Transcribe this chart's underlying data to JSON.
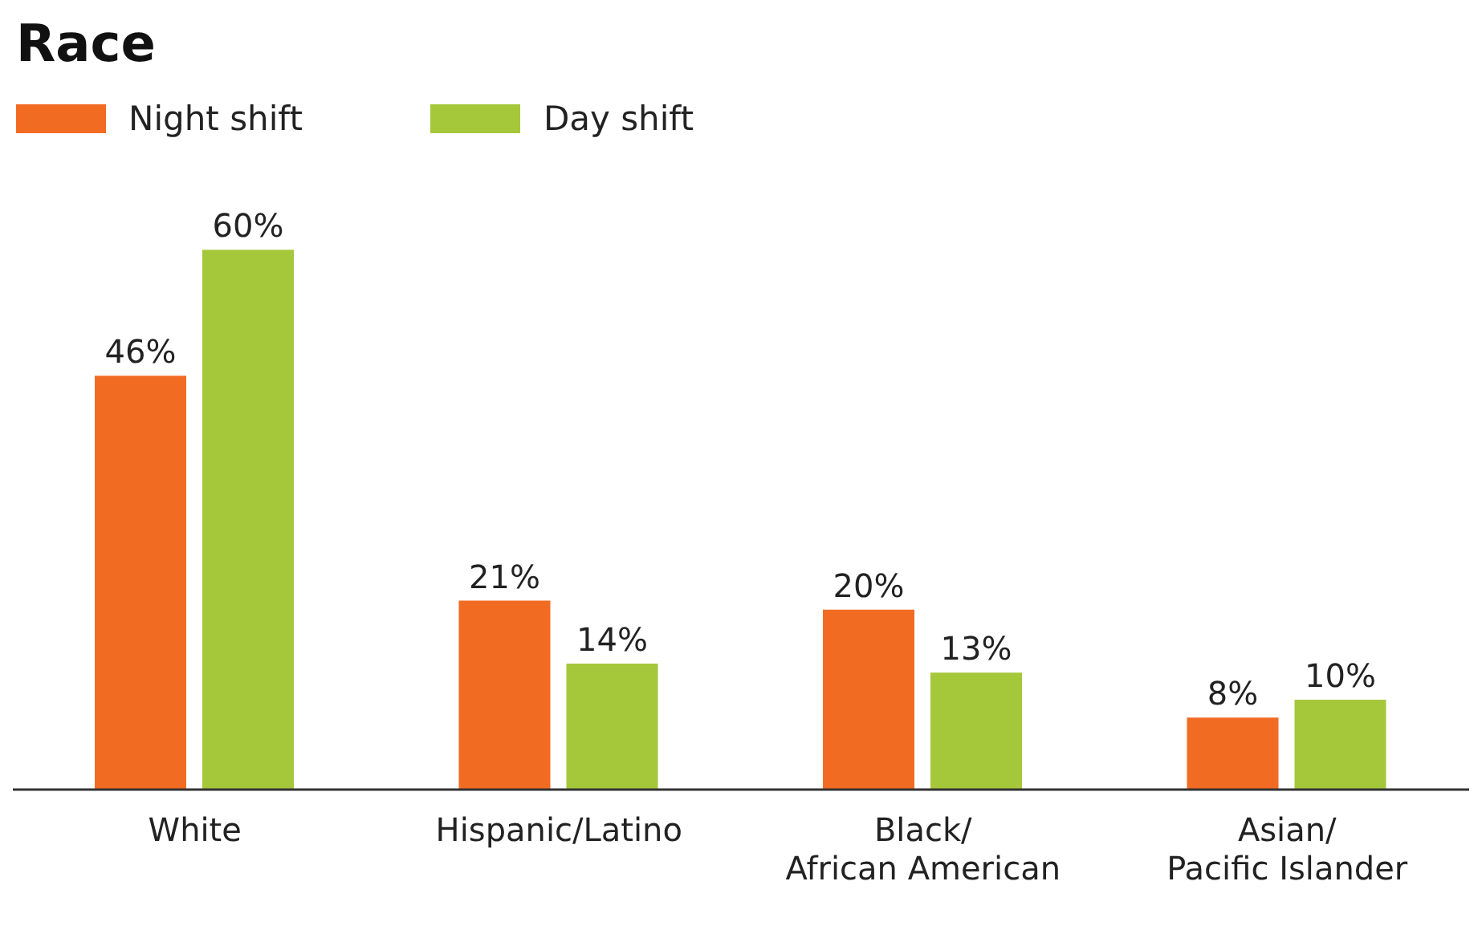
{
  "chart_data": {
    "type": "bar",
    "title": "Race",
    "categories": [
      "White",
      "Hispanic/Latino",
      "Black/\nAfrican American",
      "Asian/\nPacific Islander"
    ],
    "series": [
      {
        "name": "Night shift",
        "color": "#f26b23",
        "values": [
          46,
          21,
          20,
          8
        ],
        "value_labels": [
          "46%",
          "21%",
          "20%",
          "8%"
        ]
      },
      {
        "name": "Day shift",
        "color": "#a5c83a",
        "values": [
          60,
          14,
          13,
          10
        ],
        "value_labels": [
          "60%",
          "14%",
          "13%",
          "10%"
        ]
      }
    ],
    "legend": "top left",
    "grid": false
  }
}
